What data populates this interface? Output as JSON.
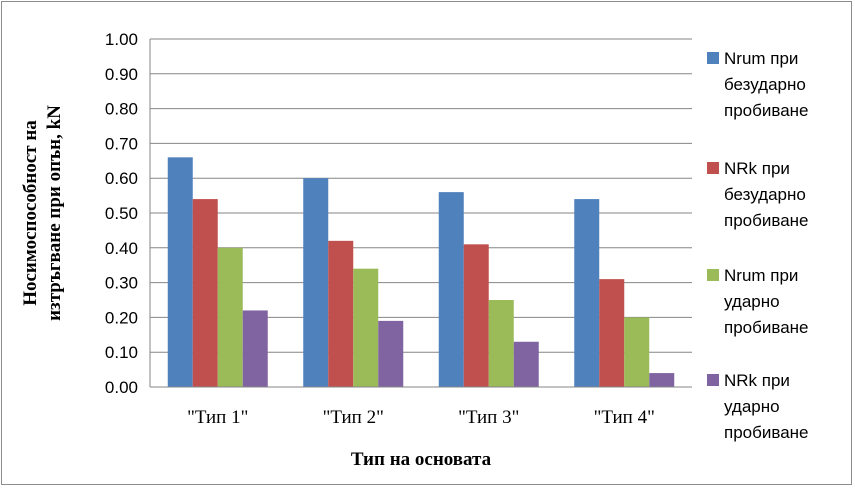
{
  "chart_data": {
    "type": "bar",
    "categories": [
      "\"Тип 1\"",
      "\"Тип 2\"",
      "\"Тип 3\"",
      "\"Тип 4\""
    ],
    "series": [
      {
        "name": "Nrum при безударно пробиване",
        "legend_lines": [
          "Nrum при",
          "безударно",
          "пробиване"
        ],
        "color": "#4f81bd",
        "values": [
          0.66,
          0.6,
          0.56,
          0.54
        ]
      },
      {
        "name": "NRk при безударно пробиване",
        "legend_lines": [
          "NRk при",
          "безударно",
          "пробиване"
        ],
        "color": "#c0504d",
        "values": [
          0.54,
          0.42,
          0.41,
          0.31
        ]
      },
      {
        "name": "Nrum при ударно пробиване",
        "legend_lines": [
          "Nrum при",
          "ударно",
          "пробиване"
        ],
        "color": "#9bbb59",
        "values": [
          0.4,
          0.34,
          0.25,
          0.2
        ]
      },
      {
        "name": "NRk при ударно пробиване",
        "legend_lines": [
          "NRk при",
          "ударно",
          "пробиване"
        ],
        "color": "#8064a2",
        "values": [
          0.22,
          0.19,
          0.13,
          0.04
        ]
      }
    ],
    "title": "",
    "xlabel": "Тип на основата",
    "ylabel_lines": [
      "Носимоспособност на",
      "изтръгване при опън, kN"
    ],
    "ylim": [
      0,
      1
    ],
    "ytick_step": 0.1,
    "ytick_decimals": 2,
    "grid": true,
    "legend_position": "right",
    "grid_color": "#868686"
  }
}
